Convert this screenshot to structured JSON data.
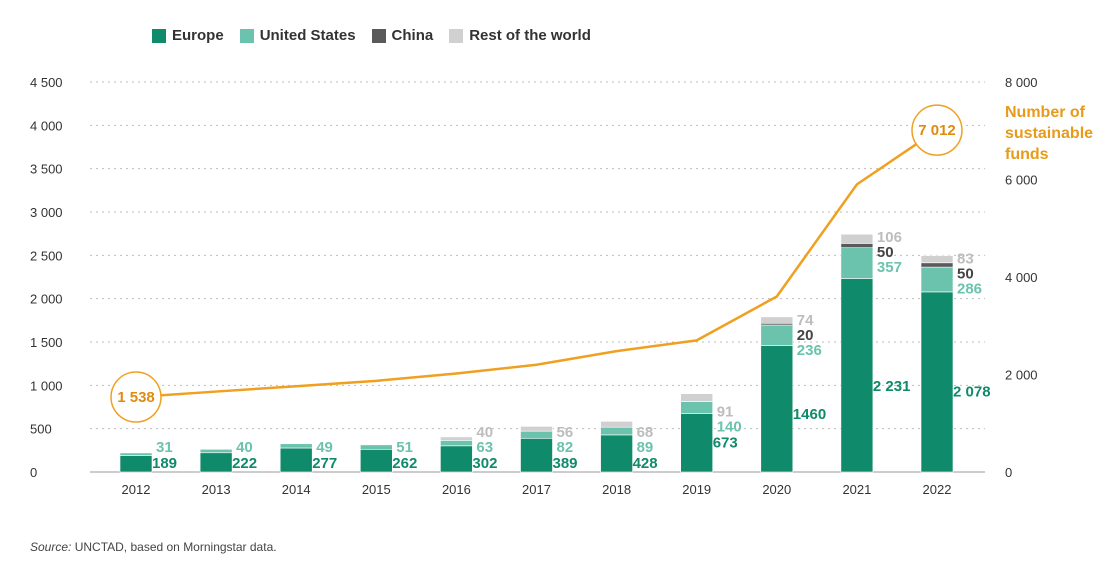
{
  "chart_data": {
    "type": "bar",
    "subtype": "stacked_bar_with_line",
    "categories": [
      "2012",
      "2013",
      "2014",
      "2015",
      "2016",
      "2017",
      "2018",
      "2019",
      "2020",
      "2021",
      "2022"
    ],
    "series": [
      {
        "name": "Europe",
        "color": "#0f8a6a",
        "values": [
          189,
          222,
          277,
          262,
          302,
          389,
          428,
          673,
          1460,
          2231,
          2078
        ],
        "labels": [
          "189",
          "222",
          "277",
          "262",
          "302",
          "389",
          "428",
          "673",
          "1460",
          "2 231",
          "2 078"
        ]
      },
      {
        "name": "United States",
        "color": "#6cc3ad",
        "values": [
          31,
          40,
          49,
          51,
          63,
          82,
          89,
          140,
          236,
          357,
          286
        ],
        "labels": [
          "31",
          "40",
          "49",
          "51",
          "63",
          "82",
          "89",
          "140",
          "236",
          "357",
          "286"
        ]
      },
      {
        "name": "China",
        "color": "#5a5a5a",
        "values": [
          0,
          0,
          0,
          0,
          0,
          0,
          0,
          0,
          20,
          50,
          50
        ],
        "labels": [
          "",
          "",
          "",
          "",
          "",
          "",
          "",
          "",
          "20",
          "50",
          "50"
        ]
      },
      {
        "name": "Rest of the world",
        "color": "#d0d0d0",
        "values": [
          0,
          0,
          0,
          0,
          40,
          56,
          68,
          91,
          74,
          106,
          83
        ],
        "labels": [
          "",
          "",
          "",
          "",
          "40",
          "56",
          "68",
          "91",
          "74",
          "106",
          "83"
        ]
      }
    ],
    "line_series": {
      "name": "Number of sustainable funds",
      "color": "#f0a020",
      "values": [
        1538,
        1650,
        1760,
        1870,
        2020,
        2200,
        2480,
        2700,
        3600,
        5900,
        7012
      ],
      "highlight": [
        {
          "index": 0,
          "label": "1 538"
        },
        {
          "index": 10,
          "label": "7 012"
        }
      ],
      "annotation_lines": [
        "Number of",
        "sustainable",
        "funds"
      ]
    },
    "y_left": {
      "min": 0,
      "max": 4500,
      "ticks": [
        0,
        500,
        1000,
        1500,
        2000,
        2500,
        3000,
        3500,
        4000,
        4500
      ],
      "tick_labels": [
        "0",
        "500",
        "1 000",
        "1 500",
        "2 000",
        "2 500",
        "3 000",
        "3 500",
        "4 000",
        "4 500"
      ]
    },
    "y_right": {
      "min": 0,
      "max": 8000,
      "ticks": [
        0,
        2000,
        4000,
        6000,
        8000
      ],
      "tick_labels": [
        "0",
        "2 000",
        "4 000",
        "6 000",
        "8 000"
      ]
    },
    "grid": true,
    "legend_position": "top-left"
  },
  "source": {
    "label": "Source:",
    "text": "UNCTAD, based on Morningstar data."
  }
}
